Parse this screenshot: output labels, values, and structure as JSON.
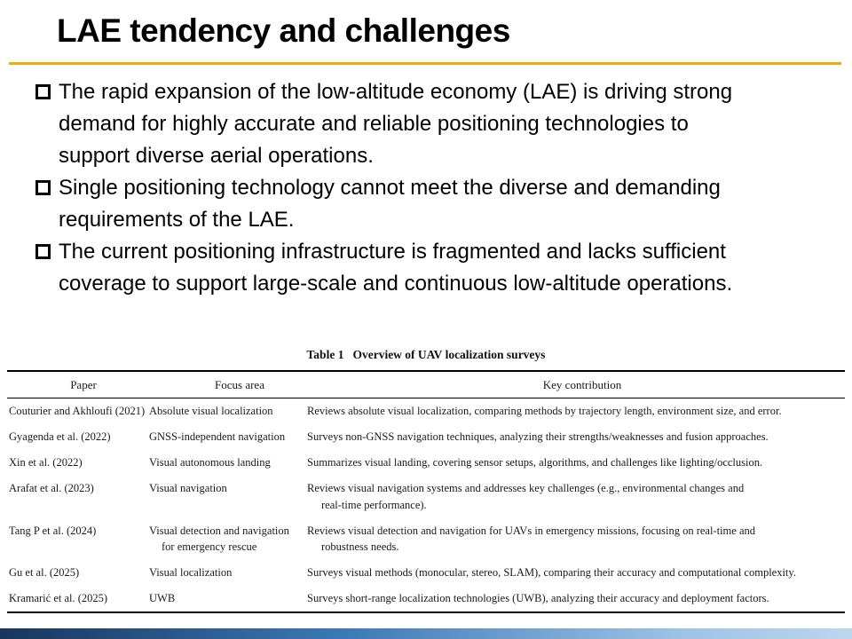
{
  "slide": {
    "title": "LAE tendency and challenges",
    "accent_color": "#EFAD00",
    "bullets": [
      "The rapid expansion of the low-altitude economy (LAE) is driving strong\ndemand for highly accurate and reliable positioning technologies to\nsupport diverse aerial operations.",
      "Single positioning technology cannot meet the diverse and demanding\nrequirements of the LAE.",
      "The current positioning infrastructure is fragmented and lacks sufficient\ncoverage to support large-scale and continuous low-altitude operations."
    ]
  },
  "table": {
    "caption_label": "Table 1",
    "caption_title": "Overview of UAV localization surveys",
    "headers": [
      "Paper",
      "Focus area",
      "Key contribution"
    ],
    "rows": [
      {
        "paper": "Couturier and Akhloufi (2021)",
        "focus": "Absolute visual localization",
        "contribution": "Reviews absolute visual localization, comparing methods by trajectory length, environment size, and error."
      },
      {
        "paper": "Gyagenda et al. (2022)",
        "focus": "GNSS-independent navigation",
        "contribution": "Surveys non-GNSS navigation techniques, analyzing their strengths/weaknesses and fusion approaches."
      },
      {
        "paper": "Xin et al. (2022)",
        "focus": "Visual autonomous landing",
        "contribution": "Summarizes visual landing, covering sensor setups, algorithms, and challenges like lighting/occlusion."
      },
      {
        "paper": "Arafat et al. (2023)",
        "focus": "Visual navigation",
        "contribution": "Reviews visual navigation systems and addresses key challenges (e.g., environmental changes and\nreal-time performance)."
      },
      {
        "paper": "Tang P et al. (2024)",
        "focus": "Visual detection and navigation\nfor emergency rescue",
        "contribution": "Reviews visual detection and navigation for UAVs in emergency missions, focusing on real-time and\nrobustness needs."
      },
      {
        "paper": "Gu et al. (2025)",
        "focus": "Visual localization",
        "contribution": "Surveys visual methods (monocular, stereo, SLAM), comparing their accuracy and computational complexity."
      },
      {
        "paper": "Kramarić et al. (2025)",
        "focus": "UWB",
        "contribution": "Surveys short-range localization technologies (UWB), analyzing their accuracy and deployment factors."
      }
    ]
  },
  "footer": {
    "gradient": [
      "#17365D",
      "#3C78B4",
      "#9DC3E6",
      "#BCD6EC"
    ]
  }
}
